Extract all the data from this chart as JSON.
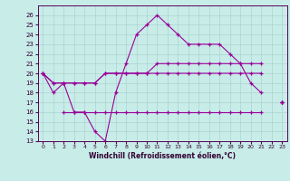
{
  "xlabel": "Windchill (Refroidissement éolien,°C)",
  "x": [
    0,
    1,
    2,
    3,
    4,
    5,
    6,
    7,
    8,
    9,
    10,
    11,
    12,
    13,
    14,
    15,
    16,
    17,
    18,
    19,
    20,
    21,
    22,
    23
  ],
  "line1": [
    20,
    18,
    19,
    16,
    16,
    14,
    13,
    18,
    21,
    24,
    25,
    26,
    25,
    24,
    23,
    23,
    23,
    23,
    22,
    21,
    19,
    18,
    null,
    17
  ],
  "line2": [
    20,
    19,
    19,
    19,
    19,
    19,
    20,
    20,
    20,
    20,
    20,
    21,
    21,
    21,
    21,
    21,
    21,
    21,
    21,
    21,
    21,
    21,
    null,
    17
  ],
  "line3": [
    20,
    19,
    19,
    19,
    19,
    19,
    20,
    20,
    20,
    20,
    20,
    20,
    20,
    20,
    20,
    20,
    20,
    20,
    20,
    20,
    20,
    20,
    null,
    17
  ],
  "line4": [
    null,
    null,
    16,
    16,
    16,
    16,
    16,
    16,
    16,
    16,
    16,
    16,
    16,
    16,
    16,
    16,
    16,
    16,
    16,
    16,
    16,
    16,
    null,
    17
  ],
  "bg_color": "#c8ece8",
  "grid_color": "#aad4d0",
  "line_color": "#990099",
  "xlim": [
    -0.5,
    23.5
  ],
  "ylim": [
    13,
    27
  ],
  "yticks": [
    13,
    14,
    15,
    16,
    17,
    18,
    19,
    20,
    21,
    22,
    23,
    24,
    25,
    26
  ],
  "xticks": [
    0,
    1,
    2,
    3,
    4,
    5,
    6,
    7,
    8,
    9,
    10,
    11,
    12,
    13,
    14,
    15,
    16,
    17,
    18,
    19,
    20,
    21,
    22,
    23
  ]
}
